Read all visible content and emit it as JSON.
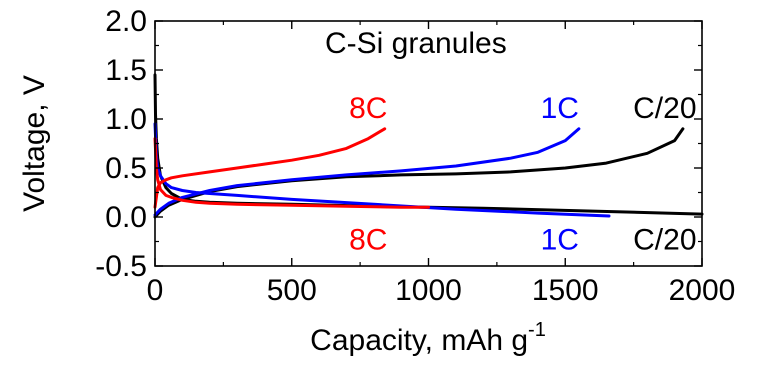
{
  "chart_data": {
    "type": "line",
    "title": "C-Si granules",
    "xlabel": "Capacity, mAh g",
    "xlabel_superscript": "-1",
    "ylabel": "Voltage, V",
    "xlim": [
      0,
      2000
    ],
    "ylim": [
      -0.5,
      2.0
    ],
    "x_ticks": [
      0,
      500,
      1000,
      1500,
      2000
    ],
    "x_tick_labels": [
      "0",
      "500",
      "1000",
      "1500",
      "2000"
    ],
    "y_ticks": [
      -0.5,
      0.0,
      0.5,
      1.0,
      1.5,
      2.0
    ],
    "y_tick_labels": [
      "-0.5",
      "0.0",
      "0.5",
      "1.0",
      "1.5",
      "2.0"
    ],
    "grid": false,
    "legend": "none",
    "series": [
      {
        "color": "#000000",
        "branch": "lithiation",
        "x": [
          0,
          2,
          5,
          10,
          20,
          40,
          60,
          100,
          150,
          200,
          300,
          500,
          800,
          1200,
          1600,
          2000
        ],
        "y": [
          1.45,
          1.05,
          0.8,
          0.6,
          0.42,
          0.3,
          0.24,
          0.18,
          0.16,
          0.15,
          0.14,
          0.13,
          0.11,
          0.09,
          0.06,
          0.03
        ]
      },
      {
        "color": "#000000",
        "branch": "delithiation",
        "x": [
          0,
          20,
          50,
          100,
          200,
          300,
          500,
          700,
          900,
          1100,
          1300,
          1500,
          1650,
          1800,
          1900,
          1930
        ],
        "y": [
          0.0,
          0.06,
          0.12,
          0.18,
          0.26,
          0.31,
          0.37,
          0.41,
          0.43,
          0.44,
          0.46,
          0.5,
          0.55,
          0.65,
          0.78,
          0.9
        ]
      },
      {
        "color": "#0000ff",
        "branch": "lithiation",
        "x": [
          0,
          5,
          10,
          20,
          40,
          60,
          100,
          150,
          200,
          300,
          500,
          800,
          1100,
          1400,
          1660
        ],
        "y": [
          0.95,
          0.62,
          0.5,
          0.42,
          0.34,
          0.3,
          0.27,
          0.25,
          0.24,
          0.22,
          0.18,
          0.13,
          0.08,
          0.04,
          0.01
        ]
      },
      {
        "color": "#0000ff",
        "branch": "delithiation",
        "x": [
          0,
          20,
          50,
          100,
          200,
          300,
          500,
          700,
          900,
          1100,
          1300,
          1400,
          1500,
          1550
        ],
        "y": [
          0.02,
          0.08,
          0.14,
          0.2,
          0.27,
          0.32,
          0.38,
          0.43,
          0.47,
          0.52,
          0.6,
          0.66,
          0.78,
          0.9
        ]
      },
      {
        "color": "#ff0000",
        "branch": "lithiation",
        "x": [
          0,
          5,
          10,
          20,
          40,
          60,
          100,
          150,
          200,
          300,
          500,
          700,
          900,
          1000
        ],
        "y": [
          0.8,
          0.5,
          0.38,
          0.28,
          0.22,
          0.2,
          0.17,
          0.15,
          0.14,
          0.13,
          0.12,
          0.11,
          0.1,
          0.1
        ]
      },
      {
        "color": "#ff0000",
        "branch": "delithiation",
        "x": [
          0,
          10,
          20,
          40,
          60,
          100,
          200,
          300,
          400,
          500,
          600,
          700,
          780,
          840
        ],
        "y": [
          0.1,
          0.3,
          0.35,
          0.38,
          0.4,
          0.42,
          0.46,
          0.5,
          0.54,
          0.58,
          0.63,
          0.7,
          0.8,
          0.9
        ]
      }
    ],
    "annotations": [
      {
        "text": "8C",
        "color": "#ff0000",
        "x": 850,
        "y": 1.12
      },
      {
        "text": "1C",
        "color": "#0000ff",
        "x": 1550,
        "y": 1.12
      },
      {
        "text": "C/20",
        "color": "#000000",
        "x": 1980,
        "y": 1.12
      },
      {
        "text": "8C",
        "color": "#ff0000",
        "x": 850,
        "y": -0.22
      },
      {
        "text": "1C",
        "color": "#0000ff",
        "x": 1550,
        "y": -0.22
      },
      {
        "text": "C/20",
        "color": "#000000",
        "x": 1980,
        "y": -0.22
      }
    ]
  }
}
